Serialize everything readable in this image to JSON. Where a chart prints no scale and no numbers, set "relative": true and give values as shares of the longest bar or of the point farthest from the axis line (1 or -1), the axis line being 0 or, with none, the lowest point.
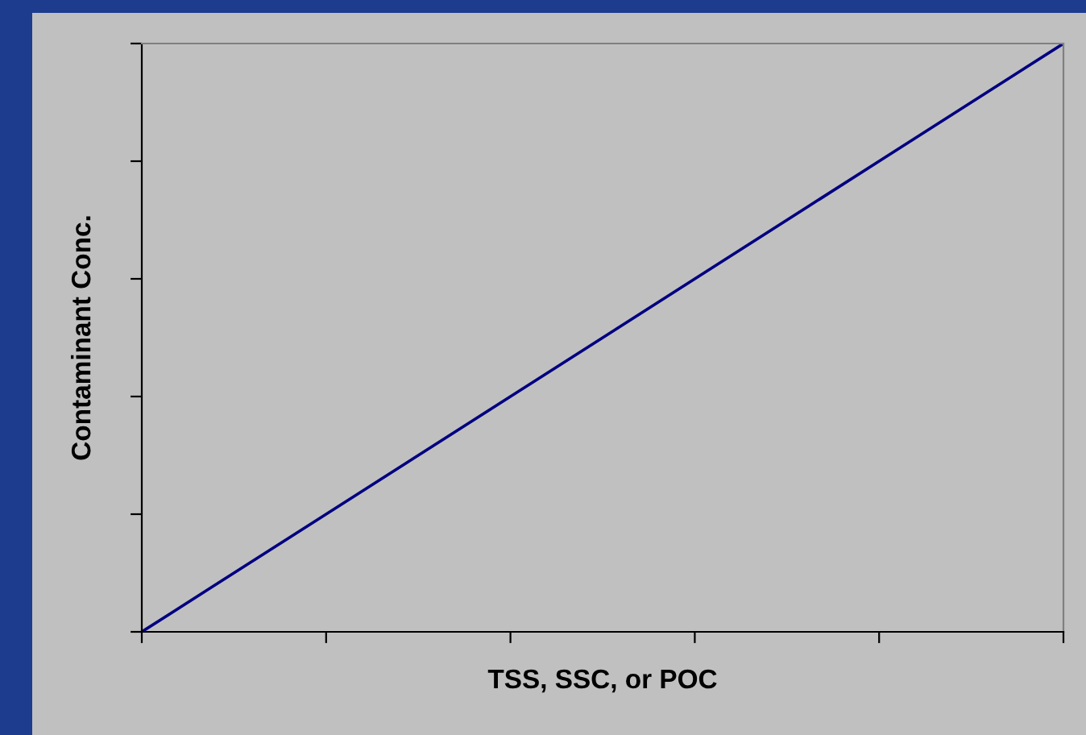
{
  "chart_data": {
    "type": "line",
    "xlabel": "TSS, SSC, or POC",
    "ylabel": "Contaminant Conc.",
    "categories": [
      null,
      null,
      null,
      null,
      null,
      null
    ],
    "series": [
      {
        "color": "#000080",
        "values": [
          0,
          0.2,
          0.4,
          0.6,
          0.8,
          1
        ]
      }
    ],
    "relative": true,
    "grid": false,
    "legend": false,
    "marker": "none",
    "line_style": "solid"
  }
}
